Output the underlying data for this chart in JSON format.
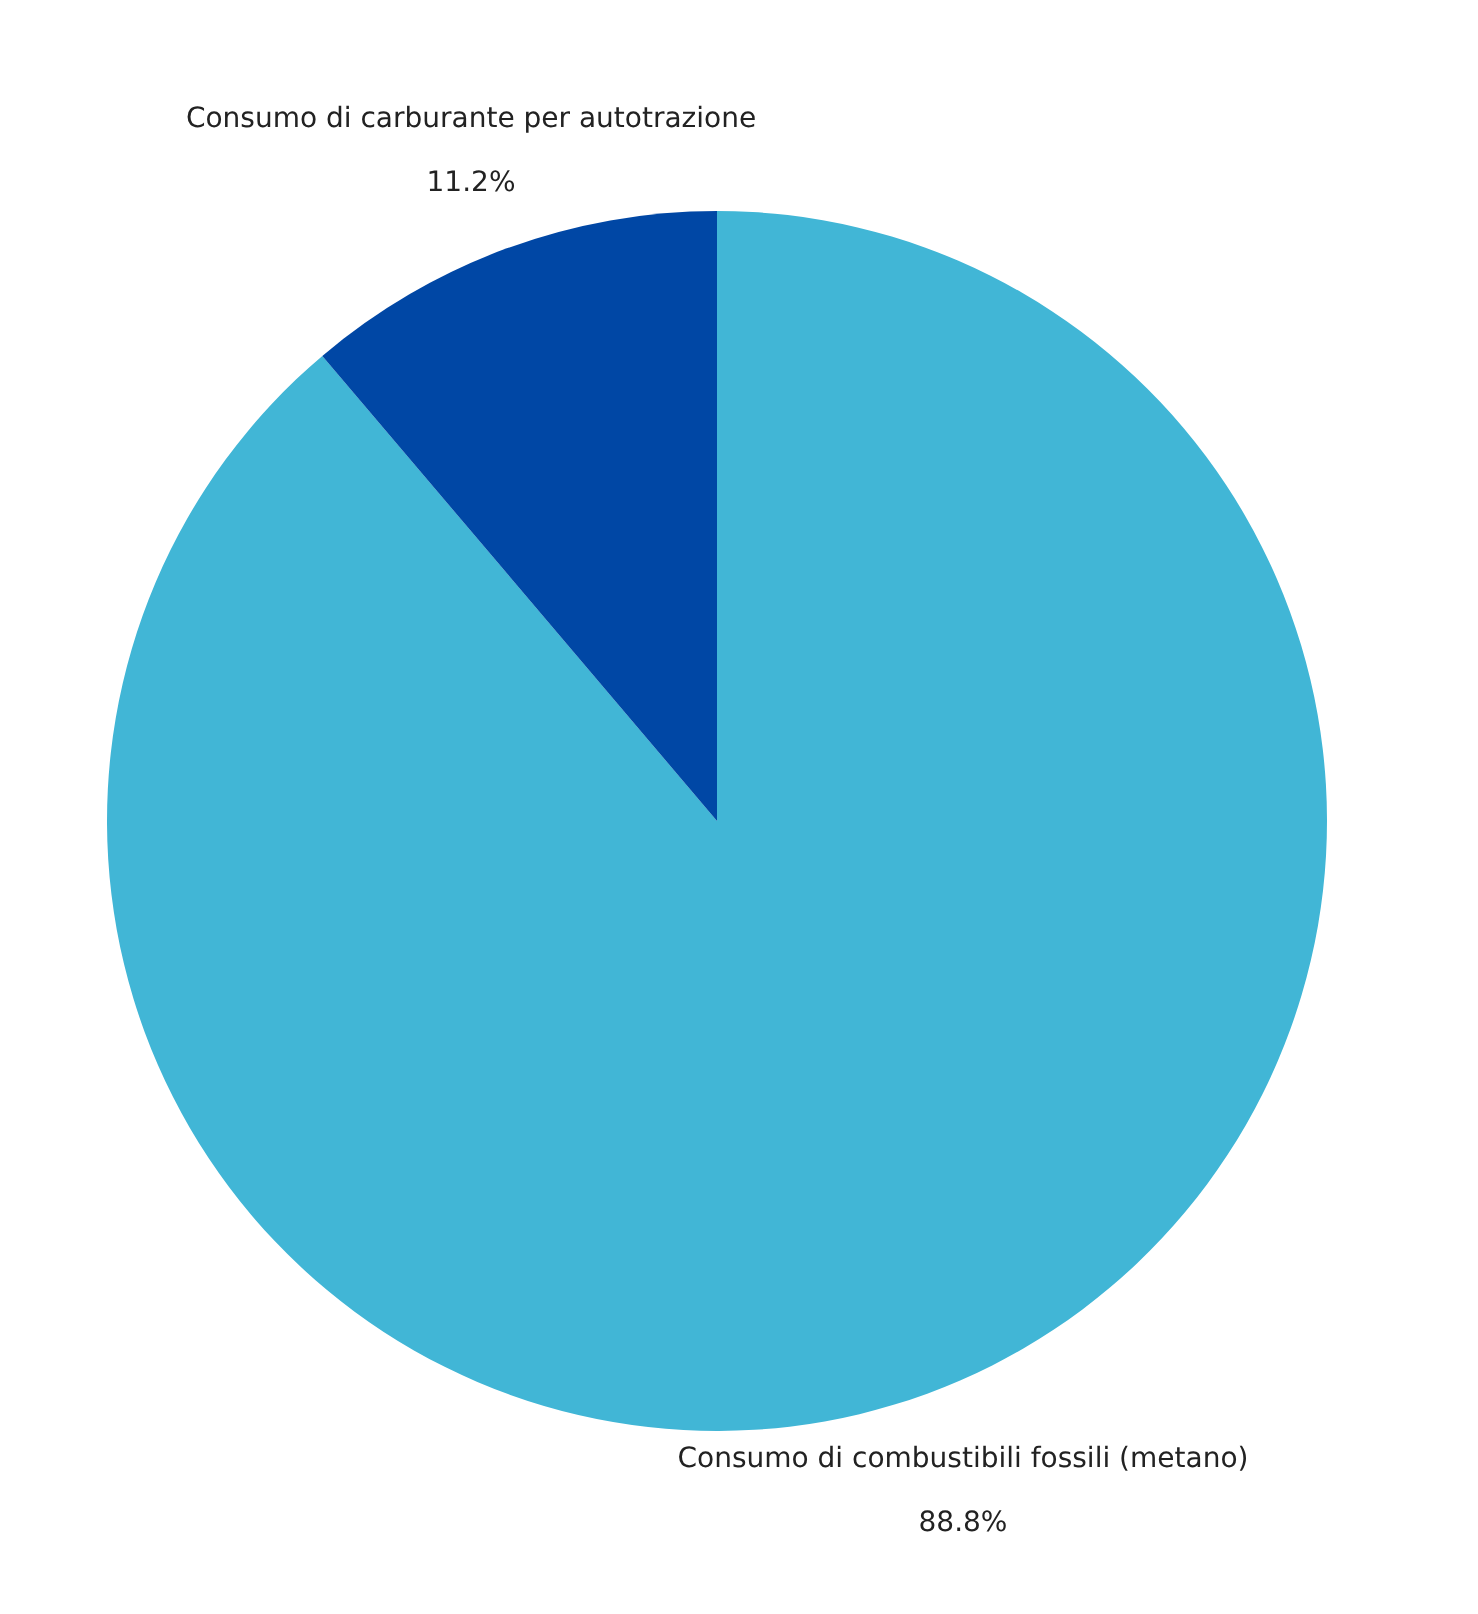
{
  "chart_data": {
    "type": "pie",
    "categories": [
      "Consumo di combustibili fossili (metano)",
      "Consumo di carburante per autotrazione"
    ],
    "values": [
      88.8,
      11.2
    ],
    "colors": [
      "#41b6d6",
      "#0047a5"
    ],
    "value_labels": [
      "88.8%",
      "11.2%"
    ]
  }
}
